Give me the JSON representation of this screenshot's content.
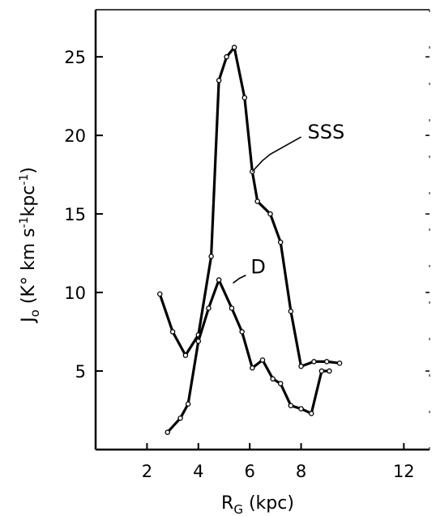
{
  "chart_data": {
    "type": "line",
    "xlabel": "R",
    "xlabel_sub": "G",
    "xlabel_unit": " (kpc)",
    "ylabel_parts": [
      "J",
      "o",
      " (K° km  s",
      "-1",
      "kpc",
      "-1",
      ")"
    ],
    "xlim": [
      0,
      13
    ],
    "ylim": [
      0,
      28
    ],
    "x_ticks": [
      2,
      4,
      6,
      8,
      12
    ],
    "y_ticks": [
      5,
      10,
      15,
      20,
      25
    ],
    "grid": false,
    "series": [
      {
        "name": "SSS",
        "x": [
          2.5,
          3.0,
          3.5,
          4.0,
          4.5,
          4.8,
          5.1,
          5.4,
          5.8,
          6.1,
          6.3,
          6.8,
          7.2,
          7.6,
          8.0,
          8.5,
          9.0,
          9.5
        ],
        "y": [
          9.9,
          7.5,
          6.0,
          7.3,
          12.3,
          23.5,
          25.0,
          25.6,
          22.4,
          17.7,
          15.8,
          15.0,
          13.2,
          8.8,
          5.3,
          5.6,
          5.6,
          5.5
        ]
      },
      {
        "name": "D",
        "x": [
          2.8,
          3.3,
          3.6,
          4.0,
          4.4,
          4.8,
          5.3,
          5.7,
          6.1,
          6.5,
          6.9,
          7.2,
          7.6,
          8.0,
          8.4,
          8.8,
          9.1
        ],
        "y": [
          1.1,
          2.0,
          2.9,
          6.9,
          9.0,
          10.8,
          9.0,
          7.5,
          5.2,
          5.7,
          4.5,
          4.2,
          2.8,
          2.6,
          2.3,
          5.0,
          5.0
        ]
      }
    ],
    "annotations": [
      {
        "text": "SSS",
        "series": "SSS"
      },
      {
        "text": "D",
        "series": "D"
      }
    ]
  }
}
